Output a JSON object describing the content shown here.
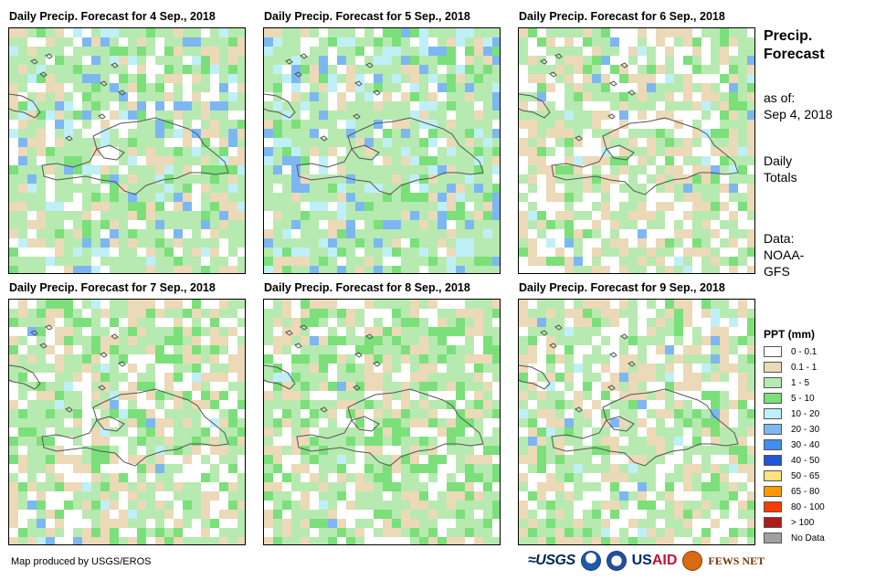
{
  "panels": [
    {
      "title": "Daily Precip. Forecast for 4 Sep., 2018",
      "seed": 11,
      "wet": 0.62,
      "heavy": 0.05
    },
    {
      "title": "Daily Precip. Forecast for 5 Sep., 2018",
      "seed": 23,
      "wet": 0.78,
      "heavy": 0.08
    },
    {
      "title": "Daily Precip. Forecast for 6 Sep., 2018",
      "seed": 37,
      "wet": 0.42,
      "heavy": 0.02
    },
    {
      "title": "Daily Precip. Forecast for 7 Sep., 2018",
      "seed": 41,
      "wet": 0.45,
      "heavy": 0.01
    },
    {
      "title": "Daily Precip. Forecast for 8 Sep., 2018",
      "seed": 53,
      "wet": 0.55,
      "heavy": 0.01
    },
    {
      "title": "Daily Precip. Forecast for 9 Sep., 2018",
      "seed": 67,
      "wet": 0.4,
      "heavy": 0.02
    }
  ],
  "side": {
    "title_line1": "Precip.",
    "title_line2": "Forecast",
    "asof_line1": "as of:",
    "asof_line2": "Sep 4, 2018",
    "totals_line1": "Daily",
    "totals_line2": "Totals",
    "data_line1": "Data:",
    "data_line2": "NOAA-",
    "data_line3": "GFS"
  },
  "legend": {
    "title": "PPT (mm)",
    "items": [
      {
        "label": "0 - 0.1",
        "color": "#ffffff"
      },
      {
        "label": "0.1 - 1",
        "color": "#ecd9b8"
      },
      {
        "label": "1 - 5",
        "color": "#b7eab0"
      },
      {
        "label": "5 - 10",
        "color": "#7be07a"
      },
      {
        "label": "10 - 20",
        "color": "#bff0f8"
      },
      {
        "label": "20 - 30",
        "color": "#7db7f2"
      },
      {
        "label": "30 - 40",
        "color": "#3f8ff0"
      },
      {
        "label": "40 - 50",
        "color": "#1f55d8"
      },
      {
        "label": "50 - 65",
        "color": "#ffe27a"
      },
      {
        "label": "65 - 80",
        "color": "#ff9a00"
      },
      {
        "label": "80 - 100",
        "color": "#ff3a00"
      },
      {
        "label": "> 100",
        "color": "#b01a1a"
      },
      {
        "label": "No Data",
        "color": "#a0a0a0"
      }
    ]
  },
  "footer": {
    "credit": "Map produced by USGS/EROS",
    "logos": {
      "usgs": "USGS",
      "usaid_a": "US",
      "usaid_b": "AID",
      "fews": "FEWS NET"
    }
  }
}
